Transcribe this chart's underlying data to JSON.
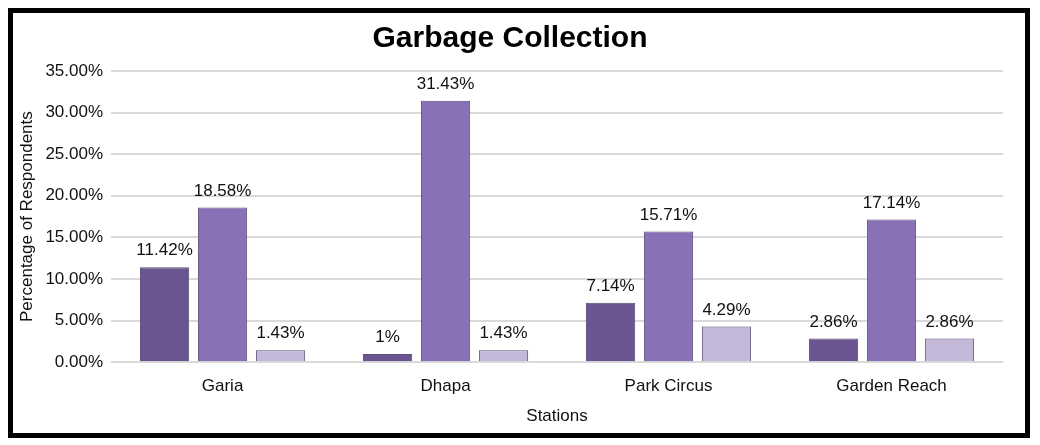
{
  "chart_data": {
    "type": "bar",
    "title": "Garbage Collection",
    "xlabel": "Stations",
    "ylabel": "Percentage of Respondents",
    "categories": [
      "Garia",
      "Dhapa",
      "Park Circus",
      "Garden Reach"
    ],
    "series": [
      {
        "color": "#6a5590",
        "values": [
          11.42,
          1,
          7.14,
          2.86
        ],
        "value_labels": [
          "11.42%",
          "1%",
          "7.14%",
          "2.86%"
        ]
      },
      {
        "color": "#8a70b4",
        "values": [
          18.58,
          31.43,
          15.71,
          17.14
        ],
        "value_labels": [
          "18.58%",
          "31.43%",
          "15.71%",
          "17.14%"
        ]
      },
      {
        "color": "#c4b8d8",
        "values": [
          1.43,
          1.43,
          4.29,
          2.86
        ],
        "value_labels": [
          "1.43%",
          "1.43%",
          "4.29%",
          "2.86%"
        ]
      }
    ],
    "ylim": [
      0,
      35
    ],
    "yticks": [
      {
        "value": 0,
        "label": "0.00%"
      },
      {
        "value": 5,
        "label": "5.00%"
      },
      {
        "value": 10,
        "label": "10.00%"
      },
      {
        "value": 15,
        "label": "15.00%"
      },
      {
        "value": 20,
        "label": "20.00%"
      },
      {
        "value": 25,
        "label": "25.00%"
      },
      {
        "value": 30,
        "label": "30.00%"
      },
      {
        "value": 35,
        "label": "35.00%"
      }
    ],
    "grid": "y",
    "legend": false
  }
}
